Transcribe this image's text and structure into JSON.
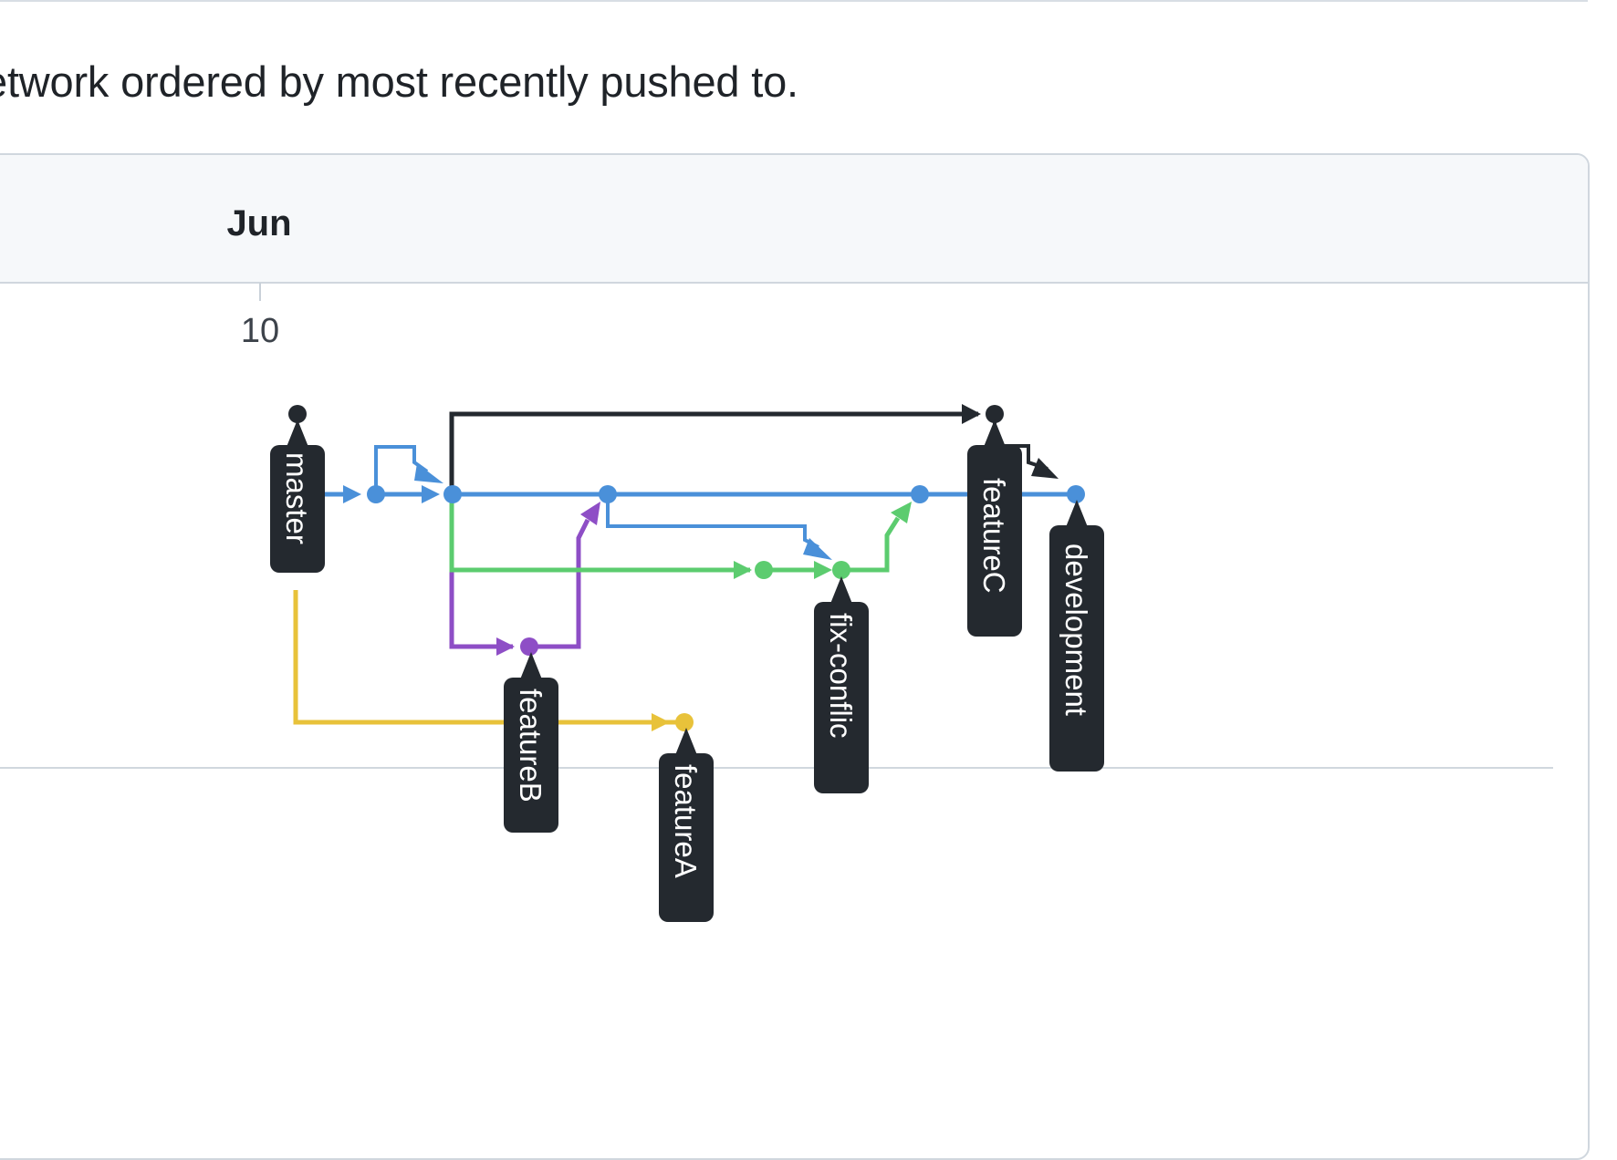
{
  "description": "etwork ordered by most recently pushed to.",
  "timeline": {
    "month": "Jun",
    "day": "10"
  },
  "colors": {
    "master": "#24292f",
    "development": "#4a90d9",
    "fix-conflic": "#5ccc6f",
    "featureB": "#8e4ec6",
    "featureA": "#e8c23a",
    "tag": "#24292f"
  },
  "branches": [
    {
      "name": "master",
      "color": "#24292f"
    },
    {
      "name": "development",
      "color": "#4a90d9"
    },
    {
      "name": "fix-conflic",
      "color": "#5ccc6f"
    },
    {
      "name": "featureB",
      "color": "#8e4ec6"
    },
    {
      "name": "featureA",
      "color": "#e8c23a"
    },
    {
      "name": "featureC",
      "color": "#24292f"
    }
  ],
  "labels": {
    "master": "master",
    "featureB": "featureB",
    "featureA": "featureA",
    "fix_conflic": "fix-conflic",
    "featureC": "featureC",
    "development": "development"
  }
}
